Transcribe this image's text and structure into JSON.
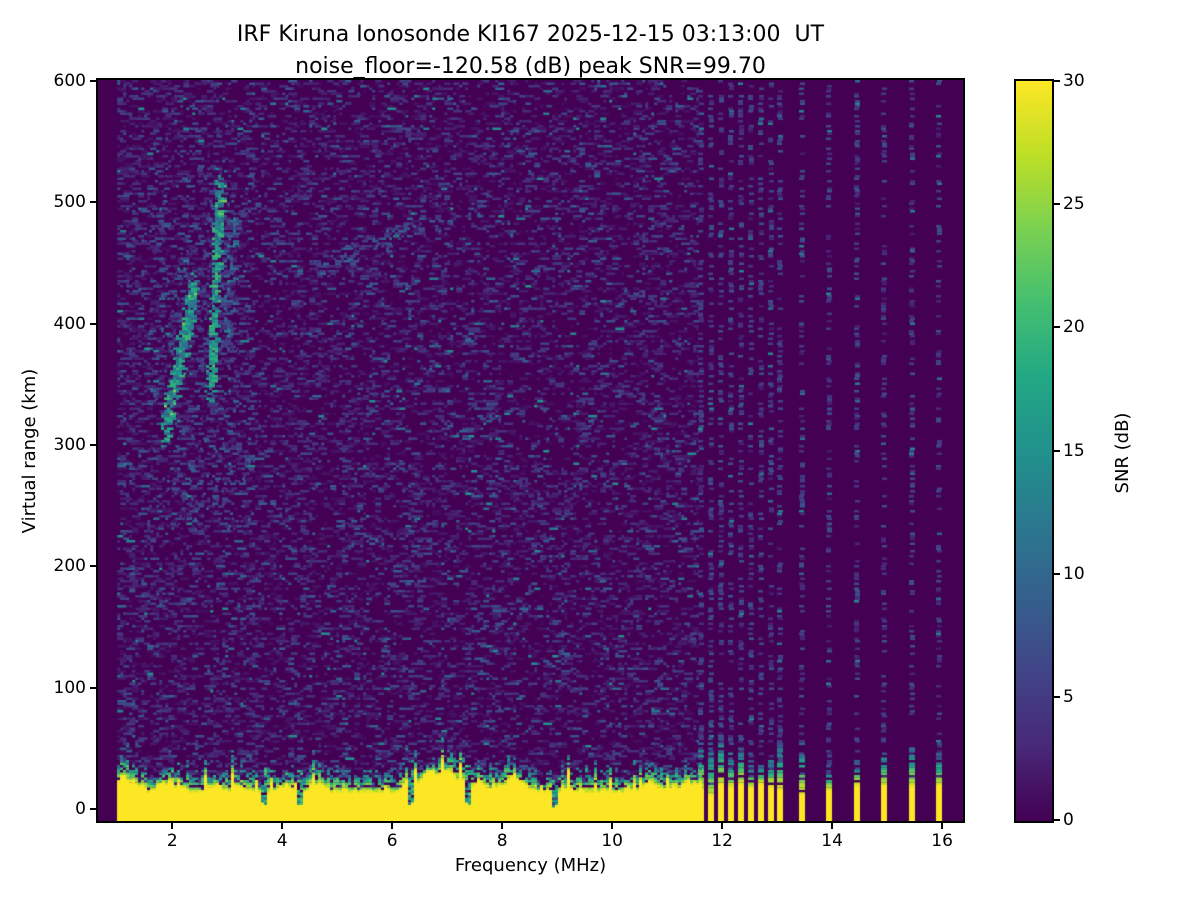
{
  "chart_data": {
    "type": "heatmap",
    "title": "IRF Kiruna Ionosonde KI167 2025-12-15 03:13:00  UT",
    "subtitle": "noise_floor=-120.58 (dB) peak SNR=99.70",
    "station": "KI167",
    "timestamp_ut": "2025-12-15 03:13:00",
    "noise_floor_db": -120.58,
    "peak_snr_db": 99.7,
    "xlabel": "Frequency (MHz)",
    "ylabel": "Virtual range (km)",
    "xlim": [
      0.65,
      16.38
    ],
    "ylim": [
      -10,
      601
    ],
    "xticks": [
      2,
      4,
      6,
      8,
      10,
      12,
      14,
      16
    ],
    "yticks": [
      0,
      100,
      200,
      300,
      400,
      500,
      600
    ],
    "grid": false,
    "legend": "none",
    "colorbar": {
      "label": "SNR (dB)",
      "min": 0,
      "max": 30,
      "ticks": [
        0,
        5,
        10,
        15,
        20,
        25,
        30
      ],
      "colormap": "viridis"
    },
    "colormap_stops": [
      "#440154",
      "#482878",
      "#414487",
      "#355f8d",
      "#2a788e",
      "#21918c",
      "#22a884",
      "#44bf70",
      "#7ad151",
      "#bddf26",
      "#fde725"
    ],
    "features": {
      "background_snr_db": 0,
      "noise_speckle_snr_db": [
        1,
        9
      ],
      "swept_band_mhz": [
        1.0,
        11.58
      ],
      "ground_clutter": {
        "freq_range_mhz": [
          1.0,
          11.58
        ],
        "solid_yellow_top_km_range": [
          15,
          31
        ],
        "speckle_top_km_range": [
          28,
          48
        ],
        "snr_db": 30,
        "notch_freqs_mhz": [
          3.62,
          4.3,
          6.33,
          7.35,
          8.95
        ]
      },
      "echo_traces": [
        {
          "name": "f-region-oblique-trace",
          "freq_mhz": [
            1.85,
            2.4
          ],
          "range_km": [
            310,
            432
          ],
          "snr_db": 16
        },
        {
          "name": "f-region-vertical-trace",
          "freq_mhz": [
            2.7,
            2.86
          ],
          "range_km": [
            348,
            516
          ],
          "snr_db": 17
        },
        {
          "name": "f-region-secondary-trace",
          "freq_mhz": [
            2.98,
            3.1
          ],
          "range_km": [
            378,
            492
          ],
          "snr_db": 9
        },
        {
          "name": "faint-oblique-streak",
          "freq_mhz": [
            4.6,
            6.6
          ],
          "range_km": [
            445,
            483
          ],
          "snr_db": 6
        }
      ],
      "stepped_freqs_dense_mhz": [
        11.62,
        11.8,
        11.98,
        12.16,
        12.34,
        12.52,
        12.7,
        12.88,
        13.06
      ],
      "stepped_freqs_sparse_mhz": [
        13.45,
        13.95,
        14.45,
        14.95,
        15.45,
        15.95
      ],
      "stepped_bar_yellow_top_km": [
        12,
        21
      ],
      "stepped_bar_speckle_top_km": [
        30,
        62
      ]
    }
  }
}
